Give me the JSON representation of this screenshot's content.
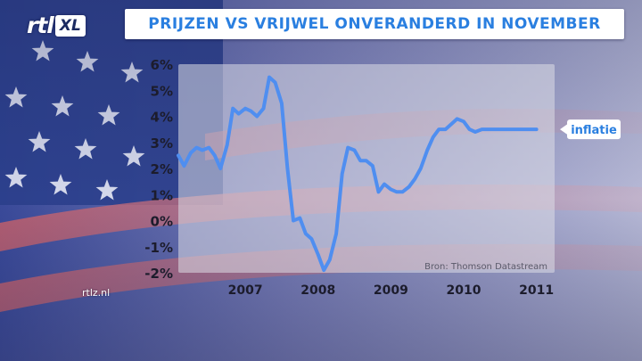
{
  "header": {
    "logo_text": "rtl",
    "logo_badge": "XL",
    "title": "PRIJZEN VS VRIJWEL ONVERANDERD IN NOVEMBER"
  },
  "footer": {
    "site": "rtlz.nl"
  },
  "colors": {
    "line": "#4f8ef0",
    "title_text": "#2a7fe0",
    "plot_bg": "#dcdde6",
    "flag_blue": "#2b3f8c",
    "flag_red": "#c0606e"
  },
  "chart_data": {
    "type": "line",
    "title": "PRIJZEN VS VRIJWEL ONVERANDERD IN NOVEMBER",
    "xlabel": "",
    "ylabel": "",
    "source": "Bron: Thomson Datastream",
    "x_tick_labels": [
      "2007",
      "2008",
      "2009",
      "2010",
      "2011"
    ],
    "x_tick_values": [
      2007,
      2008,
      2009,
      2010,
      2011
    ],
    "y_tick_labels": [
      "6%",
      "5%",
      "4%",
      "3%",
      "2%",
      "1%",
      "0%",
      "-1%",
      "-2%"
    ],
    "y_tick_values": [
      6,
      5,
      4,
      3,
      2,
      1,
      0,
      -1,
      -2
    ],
    "xlim": [
      2006.5,
      2011.67
    ],
    "ylim": [
      -2,
      6
    ],
    "grid": false,
    "series": [
      {
        "name": "inflatie",
        "x": [
          2006.5,
          2006.58,
          2006.67,
          2006.75,
          2006.83,
          2006.92,
          2007.0,
          2007.08,
          2007.17,
          2007.25,
          2007.33,
          2007.42,
          2007.5,
          2007.58,
          2007.67,
          2007.75,
          2007.83,
          2007.92,
          2008.0,
          2008.08,
          2008.17,
          2008.25,
          2008.33,
          2008.42,
          2008.5,
          2008.58,
          2008.67,
          2008.75,
          2008.83,
          2008.92,
          2009.0,
          2009.08,
          2009.17,
          2009.25,
          2009.33,
          2009.42,
          2009.5,
          2009.58,
          2009.67,
          2009.75,
          2009.83,
          2009.92,
          2010.0,
          2010.08,
          2010.17,
          2010.25,
          2010.33,
          2010.42,
          2010.5,
          2010.58,
          2010.67,
          2010.75,
          2010.83,
          2010.92,
          2011.0,
          2011.08,
          2011.17,
          2011.25,
          2011.33,
          2011.42
        ],
        "y": [
          2.5,
          2.1,
          2.6,
          2.8,
          2.7,
          2.8,
          2.5,
          2.0,
          2.9,
          4.3,
          4.1,
          4.3,
          4.2,
          4.0,
          4.3,
          5.5,
          5.3,
          4.5,
          2.0,
          0.0,
          0.1,
          -0.5,
          -0.7,
          -1.3,
          -1.9,
          -1.5,
          -0.5,
          1.8,
          2.8,
          2.7,
          2.3,
          2.3,
          2.1,
          1.1,
          1.4,
          1.2,
          1.1,
          1.1,
          1.3,
          1.6,
          2.0,
          2.7,
          3.2,
          3.5,
          3.5,
          3.7,
          3.9,
          3.8,
          3.5,
          3.4,
          3.5,
          3.5,
          3.5,
          3.5,
          3.5,
          3.5,
          3.5,
          3.5,
          3.5,
          3.5
        ]
      }
    ]
  }
}
